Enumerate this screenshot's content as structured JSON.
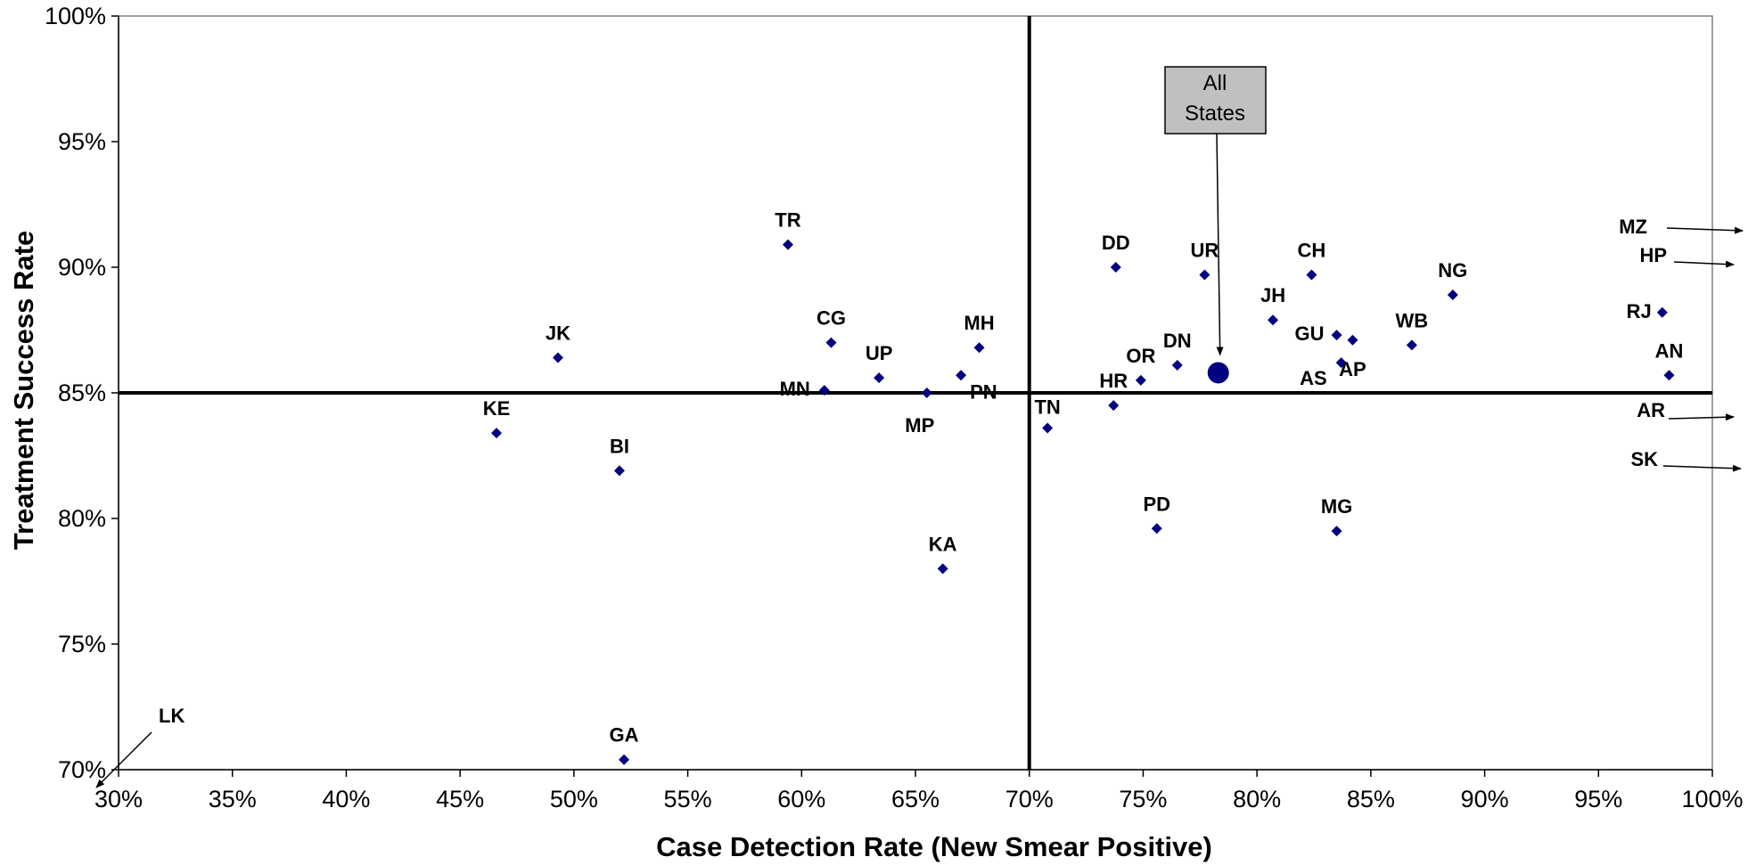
{
  "chart_data": {
    "type": "scatter",
    "title": "",
    "xlabel": "Case Detection Rate (New Smear Positive)",
    "ylabel": "Treatment Success Rate",
    "xlim": [
      30,
      100
    ],
    "ylim": [
      70,
      100
    ],
    "x_ticks": [
      30,
      35,
      40,
      45,
      50,
      55,
      60,
      65,
      70,
      75,
      80,
      85,
      90,
      95,
      100
    ],
    "y_ticks": [
      70,
      75,
      80,
      85,
      90,
      95,
      100
    ],
    "x_tick_labels": [
      "30%",
      "35%",
      "40%",
      "45%",
      "50%",
      "55%",
      "60%",
      "65%",
      "70%",
      "75%",
      "80%",
      "85%",
      "90%",
      "95%",
      "100%"
    ],
    "y_tick_labels": [
      "70%",
      "75%",
      "80%",
      "85%",
      "90%",
      "95%",
      "100%"
    ],
    "reference_lines": {
      "x": 70,
      "y": 85
    },
    "grid": false,
    "marker_color": "#000080",
    "points": [
      {
        "label": "TR",
        "x": 59.4,
        "y": 90.9
      },
      {
        "label": "JK",
        "x": 49.3,
        "y": 86.4
      },
      {
        "label": "KE",
        "x": 46.6,
        "y": 83.4
      },
      {
        "label": "BI",
        "x": 52.0,
        "y": 81.9
      },
      {
        "label": "GA",
        "x": 52.2,
        "y": 70.4
      },
      {
        "label": "CG",
        "x": 61.3,
        "y": 87.0
      },
      {
        "label": "MN",
        "x": 61.0,
        "y": 85.1
      },
      {
        "label": "UP",
        "x": 63.4,
        "y": 85.6
      },
      {
        "label": "MP",
        "x": 65.5,
        "y": 85.0
      },
      {
        "label": "PN",
        "x": 67.0,
        "y": 85.7
      },
      {
        "label": "MH",
        "x": 67.8,
        "y": 86.8
      },
      {
        "label": "KA",
        "x": 66.2,
        "y": 78.0
      },
      {
        "label": "TN",
        "x": 70.8,
        "y": 83.6
      },
      {
        "label": "HR",
        "x": 73.7,
        "y": 84.5
      },
      {
        "label": "DD",
        "x": 73.8,
        "y": 90.0
      },
      {
        "label": "OR",
        "x": 74.9,
        "y": 85.5
      },
      {
        "label": "PD",
        "x": 75.6,
        "y": 79.6
      },
      {
        "label": "DN",
        "x": 76.5,
        "y": 86.1
      },
      {
        "label": "UR",
        "x": 77.7,
        "y": 89.7
      },
      {
        "label": "JH",
        "x": 80.7,
        "y": 87.9
      },
      {
        "label": "CH",
        "x": 82.4,
        "y": 89.7
      },
      {
        "label": "GU",
        "x": 83.5,
        "y": 87.3
      },
      {
        "label": "AS",
        "x": 83.7,
        "y": 86.2
      },
      {
        "label": "AP",
        "x": 84.2,
        "y": 87.1
      },
      {
        "label": "MG",
        "x": 83.5,
        "y": 79.5
      },
      {
        "label": "WB",
        "x": 86.8,
        "y": 86.9
      },
      {
        "label": "NG",
        "x": 88.6,
        "y": 88.9
      },
      {
        "label": "RJ",
        "x": 97.8,
        "y": 88.2
      },
      {
        "label": "AN",
        "x": 98.1,
        "y": 85.7
      }
    ],
    "highlight_point": {
      "label": "All States",
      "x": 78.3,
      "y": 85.8
    },
    "callout_lines": [
      "All",
      "States"
    ],
    "off_chart_points": [
      {
        "label": "MZ",
        "direction": "right",
        "y": 91.5
      },
      {
        "label": "HP",
        "direction": "right",
        "y": 90.1
      },
      {
        "label": "AR",
        "direction": "right",
        "y": 84.0
      },
      {
        "label": "SK",
        "direction": "right",
        "y": 82.0
      },
      {
        "label": "LK",
        "direction": "lower-left"
      }
    ]
  }
}
